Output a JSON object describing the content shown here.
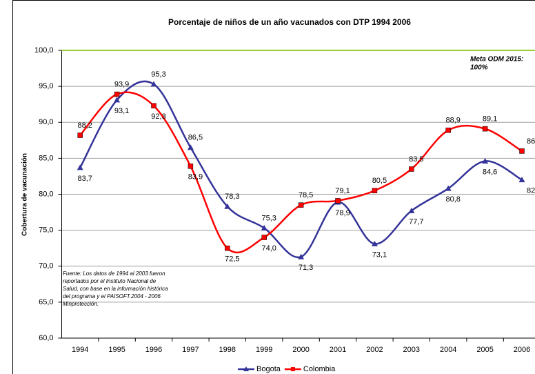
{
  "chart_data": {
    "type": "line",
    "title": "Porcentaje de niños de un año vacunados con DTP 1994 2006",
    "y_label": "Cobertura de vacunación",
    "categories": [
      "1994",
      "1995",
      "1996",
      "1997",
      "1998",
      "1999",
      "2000",
      "2001",
      "2002",
      "2003",
      "2004",
      "2005",
      "2006"
    ],
    "series": [
      {
        "name": "Bogota",
        "color": "#333399",
        "marker": "triangle",
        "values": [
          83.7,
          93.1,
          95.3,
          86.5,
          78.3,
          75.3,
          71.3,
          78.9,
          73.1,
          77.7,
          80.8,
          84.6,
          82
        ],
        "value_labels": [
          "83,7",
          "93,1",
          "95,3",
          "86,5",
          "78,3",
          "75,3",
          "71,3",
          "78,9",
          "73,1",
          "77,7",
          "80,8",
          "84,6",
          "82"
        ]
      },
      {
        "name": "Colombia",
        "color": "#ff0000",
        "marker": "square",
        "values": [
          88.2,
          93.9,
          92.3,
          83.9,
          72.5,
          74.0,
          78.5,
          79.1,
          80.5,
          83.5,
          88.9,
          89.1,
          86
        ],
        "value_labels": [
          "88,2",
          "93,9",
          "92,3",
          "83,9",
          "72,5",
          "74,0",
          "78,5",
          "79,1",
          "80,5",
          "83,5",
          "88,9",
          "89,1",
          "86"
        ]
      }
    ],
    "ylim": [
      60,
      100
    ],
    "yticks": [
      {
        "value": 60,
        "label": "60,0"
      },
      {
        "value": 65,
        "label": "65,0"
      },
      {
        "value": 70,
        "label": "70,0"
      },
      {
        "value": 75,
        "label": "75,0"
      },
      {
        "value": 80,
        "label": "80,0"
      },
      {
        "value": 85,
        "label": "85,0"
      },
      {
        "value": 90,
        "label": "90,0"
      },
      {
        "value": 95,
        "label": "95,0"
      },
      {
        "value": 100,
        "label": "100,0"
      }
    ],
    "grid": true,
    "target": {
      "value": 100,
      "color": "#99cc33",
      "label_lines": [
        "Meta ODM 2015:",
        "100%"
      ]
    },
    "source_lines": [
      "Fuente: Los datos de 1994 al 2003 fueron",
      "reportados por el Instituto Nacional de",
      "Salud, con base en la información histórica",
      "del programa y el PAISOFT.2004 - 2006",
      "Minprotección."
    ],
    "legend": "bottom"
  }
}
